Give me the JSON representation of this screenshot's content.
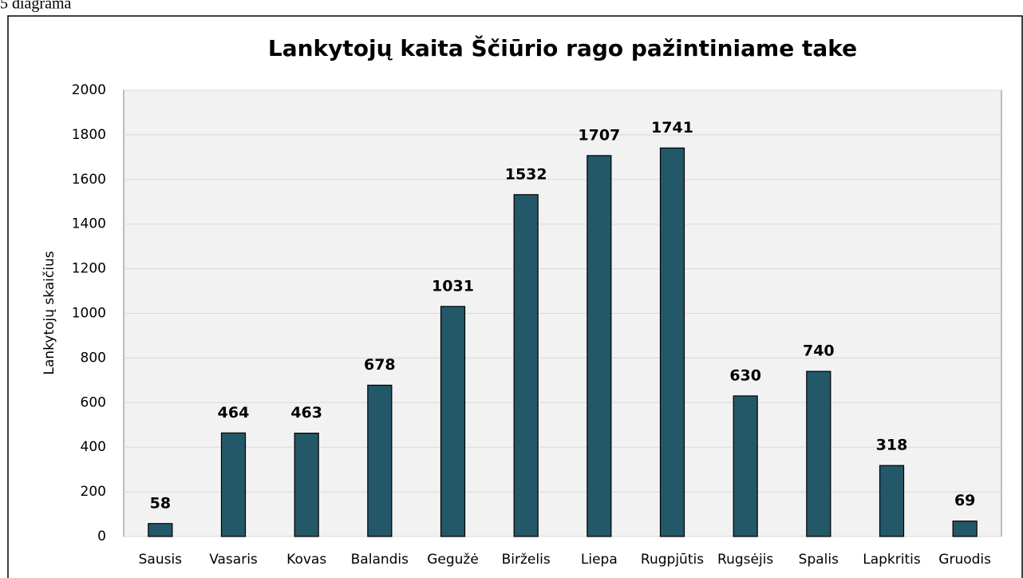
{
  "caption": "5 diagrama",
  "chart_data": {
    "type": "bar",
    "title": "Lankytojų kaita Ščiūrio rago pažintiniame take",
    "y_label": "Lankytojų skaičius",
    "categories": [
      "Sausis",
      "Vasaris",
      "Kovas",
      "Balandis",
      "Gegužė",
      "Birželis",
      "Liepa",
      "Rugpjūtis",
      "Rugsėjis",
      "Spalis",
      "Lapkritis",
      "Gruodis"
    ],
    "values": [
      58,
      464,
      463,
      678,
      1031,
      1532,
      1707,
      1741,
      630,
      740,
      318,
      69
    ],
    "color": "#235868",
    "ylim": [
      0,
      2000
    ],
    "yticks": [
      0,
      200,
      400,
      600,
      800,
      1000,
      1200,
      1400,
      1600,
      1800,
      2000
    ],
    "grid": true
  }
}
